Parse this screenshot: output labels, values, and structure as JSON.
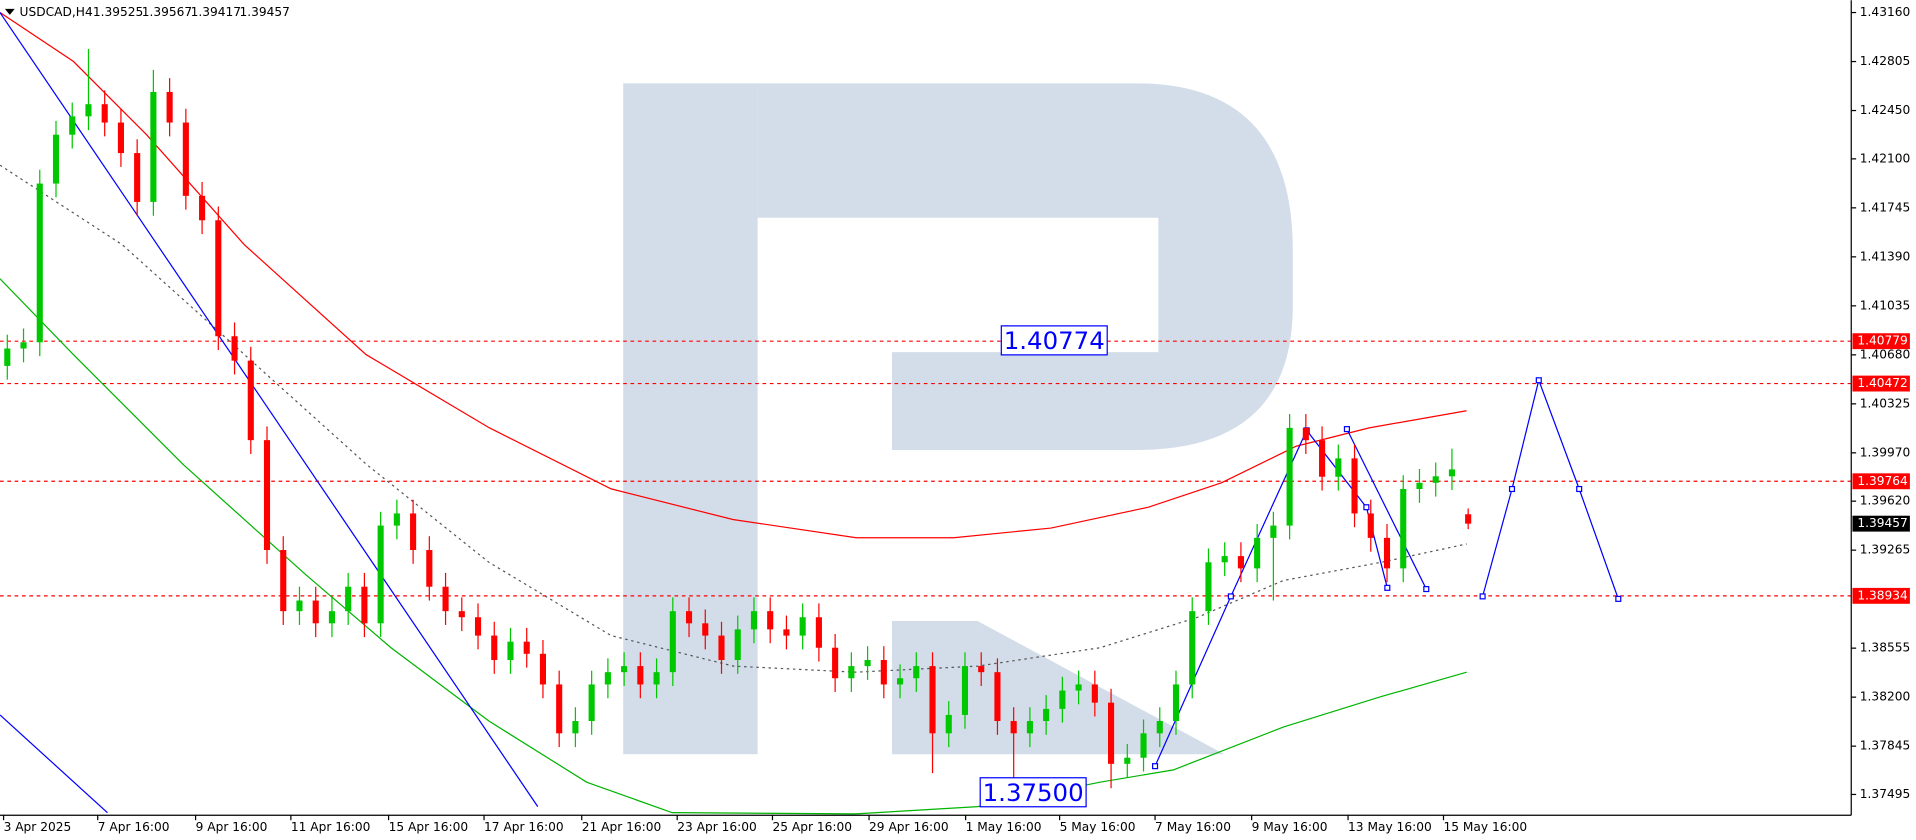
{
  "chart_data": {
    "type": "candlestick",
    "title": "USDCAD,H4",
    "bull_color": "#00c800",
    "bear_color": "#ff0000",
    "xlim": [
      -0.45,
      113.6
    ],
    "ylim": [
      1.37344,
      1.43249
    ],
    "yticks": [
      {
        "value": 1.4316,
        "label": "1.43160"
      },
      {
        "value": 1.42805,
        "label": "1.42805"
      },
      {
        "value": 1.4245,
        "label": "1.42450"
      },
      {
        "value": 1.421,
        "label": "1.42100"
      },
      {
        "value": 1.41745,
        "label": "1.41745"
      },
      {
        "value": 1.4139,
        "label": "1.41390"
      },
      {
        "value": 1.41035,
        "label": "1.41035"
      },
      {
        "value": 1.4068,
        "label": "1.40680"
      },
      {
        "value": 1.40325,
        "label": "1.40325"
      },
      {
        "value": 1.3997,
        "label": "1.39970"
      },
      {
        "value": 1.3962,
        "label": "1.39620"
      },
      {
        "value": 1.39265,
        "label": "1.39265"
      },
      {
        "value": 1.38555,
        "label": "1.38555"
      },
      {
        "value": 1.382,
        "label": "1.38200"
      },
      {
        "value": 1.37845,
        "label": "1.37845"
      },
      {
        "value": 1.37495,
        "label": "1.37495"
      }
    ],
    "xticks": [
      {
        "value": -0.23,
        "label": "3 Apr 2025"
      },
      {
        "value": 5.57,
        "label": "7 Apr 16:00"
      },
      {
        "value": 11.6,
        "label": "9 Apr 16:00"
      },
      {
        "value": 17.47,
        "label": "11 Apr 16:00"
      },
      {
        "value": 23.49,
        "label": "15 Apr 16:00"
      },
      {
        "value": 29.37,
        "label": "17 Apr 16:00"
      },
      {
        "value": 35.39,
        "label": "21 Apr 16:00"
      },
      {
        "value": 41.27,
        "label": "23 Apr 16:00"
      },
      {
        "value": 47.14,
        "label": "25 Apr 16:00"
      },
      {
        "value": 53.09,
        "label": "29 Apr 16:00"
      },
      {
        "value": 59.04,
        "label": "1 May 16:00"
      },
      {
        "value": 64.83,
        "label": "5 May 16:00"
      },
      {
        "value": 70.71,
        "label": "7 May 16:00"
      },
      {
        "value": 76.66,
        "label": "9 May 16:00"
      },
      {
        "value": 82.6,
        "label": "13 May 16:00"
      },
      {
        "value": 88.48,
        "label": "15 May 16:00"
      }
    ],
    "candles": [
      [
        1.406,
        1.40826,
        1.405,
        1.40726
      ],
      [
        1.40726,
        1.40871,
        1.40626,
        1.40771
      ],
      [
        1.40771,
        1.42021,
        1.40671,
        1.41921
      ],
      [
        1.41921,
        1.42375,
        1.41821,
        1.42275
      ],
      [
        1.42275,
        1.42508,
        1.42175,
        1.42408
      ],
      [
        1.42408,
        1.42896,
        1.42308,
        1.42496
      ],
      [
        1.42496,
        1.42596,
        1.42263,
        1.42363
      ],
      [
        1.42363,
        1.42463,
        1.42042,
        1.42142
      ],
      [
        1.42142,
        1.42242,
        1.41688,
        1.41788
      ],
      [
        1.41788,
        1.42745,
        1.41688,
        1.42585
      ],
      [
        1.42585,
        1.42685,
        1.42263,
        1.42363
      ],
      [
        1.42363,
        1.42463,
        1.41732,
        1.41832
      ],
      [
        1.41832,
        1.41932,
        1.41555,
        1.41655
      ],
      [
        1.41655,
        1.41755,
        1.40715,
        1.40815
      ],
      [
        1.40815,
        1.40915,
        1.40538,
        1.40638
      ],
      [
        1.40638,
        1.40738,
        1.39962,
        1.40062
      ],
      [
        1.40062,
        1.40162,
        1.39166,
        1.39266
      ],
      [
        1.39266,
        1.39366,
        1.38723,
        1.38823
      ],
      [
        1.38823,
        1.39,
        1.38723,
        1.389
      ],
      [
        1.389,
        1.39,
        1.38635,
        1.38735
      ],
      [
        1.38735,
        1.38923,
        1.38635,
        1.38823
      ],
      [
        1.38823,
        1.391,
        1.38723,
        1.39
      ],
      [
        1.39,
        1.391,
        1.38635,
        1.38735
      ],
      [
        1.38735,
        1.39543,
        1.38635,
        1.39443
      ],
      [
        1.39443,
        1.39631,
        1.39343,
        1.39531
      ],
      [
        1.39531,
        1.39631,
        1.39166,
        1.39266
      ],
      [
        1.39266,
        1.39366,
        1.389,
        1.39
      ],
      [
        1.39,
        1.391,
        1.38723,
        1.38823
      ],
      [
        1.38823,
        1.38923,
        1.38679,
        1.38779
      ],
      [
        1.38779,
        1.38879,
        1.38546,
        1.38646
      ],
      [
        1.38646,
        1.38746,
        1.38369,
        1.38469
      ],
      [
        1.38469,
        1.38702,
        1.38369,
        1.38602
      ],
      [
        1.38602,
        1.38702,
        1.38414,
        1.38514
      ],
      [
        1.38514,
        1.38614,
        1.38192,
        1.38292
      ],
      [
        1.38292,
        1.38392,
        1.37838,
        1.37938
      ],
      [
        1.37938,
        1.38127,
        1.37838,
        1.38027
      ],
      [
        1.38027,
        1.38392,
        1.37927,
        1.38292
      ],
      [
        1.38292,
        1.38481,
        1.38192,
        1.38381
      ],
      [
        1.38381,
        1.38525,
        1.38281,
        1.38425
      ],
      [
        1.38425,
        1.38525,
        1.38192,
        1.38292
      ],
      [
        1.38292,
        1.38481,
        1.38192,
        1.38381
      ],
      [
        1.38381,
        1.38923,
        1.38281,
        1.38823
      ],
      [
        1.38823,
        1.38923,
        1.38635,
        1.38735
      ],
      [
        1.38735,
        1.38835,
        1.38546,
        1.38646
      ],
      [
        1.38646,
        1.38746,
        1.38369,
        1.38469
      ],
      [
        1.38469,
        1.38791,
        1.38369,
        1.38691
      ],
      [
        1.38691,
        1.38923,
        1.38591,
        1.38823
      ],
      [
        1.38823,
        1.38923,
        1.38591,
        1.38691
      ],
      [
        1.38691,
        1.38791,
        1.38546,
        1.38646
      ],
      [
        1.38646,
        1.38879,
        1.38546,
        1.38779
      ],
      [
        1.38779,
        1.38879,
        1.38458,
        1.38558
      ],
      [
        1.38558,
        1.38658,
        1.38237,
        1.38337
      ],
      [
        1.38337,
        1.38525,
        1.38237,
        1.38425
      ],
      [
        1.38425,
        1.38569,
        1.38325,
        1.38469
      ],
      [
        1.38469,
        1.38569,
        1.38192,
        1.38292
      ],
      [
        1.38292,
        1.38437,
        1.38192,
        1.38337
      ],
      [
        1.38337,
        1.38525,
        1.38237,
        1.38425
      ],
      [
        1.38425,
        1.38525,
        1.3765,
        1.37938
      ],
      [
        1.37938,
        1.38171,
        1.37838,
        1.38071
      ],
      [
        1.38071,
        1.38525,
        1.37971,
        1.38425
      ],
      [
        1.38425,
        1.38525,
        1.38281,
        1.38381
      ],
      [
        1.38381,
        1.38481,
        1.37927,
        1.38027
      ],
      [
        1.38027,
        1.38127,
        1.375,
        1.37938
      ],
      [
        1.37938,
        1.38127,
        1.37838,
        1.38027
      ],
      [
        1.38027,
        1.38215,
        1.37927,
        1.38115
      ],
      [
        1.38115,
        1.38348,
        1.38015,
        1.38248
      ],
      [
        1.38248,
        1.38392,
        1.38148,
        1.38292
      ],
      [
        1.38292,
        1.38392,
        1.3806,
        1.3816
      ],
      [
        1.3816,
        1.3826,
        1.3754,
        1.37717
      ],
      [
        1.37717,
        1.37861,
        1.37617,
        1.37761
      ],
      [
        1.37761,
        1.38038,
        1.37661,
        1.37938
      ],
      [
        1.37938,
        1.38127,
        1.37838,
        1.38027
      ],
      [
        1.38027,
        1.38392,
        1.37927,
        1.38292
      ],
      [
        1.38292,
        1.38923,
        1.38192,
        1.38823
      ],
      [
        1.38823,
        1.39277,
        1.38723,
        1.39177
      ],
      [
        1.39177,
        1.39322,
        1.39077,
        1.39222
      ],
      [
        1.39222,
        1.39322,
        1.39033,
        1.39133
      ],
      [
        1.39133,
        1.39454,
        1.39033,
        1.39354
      ],
      [
        1.39354,
        1.39543,
        1.389,
        1.39443
      ],
      [
        1.39443,
        1.40251,
        1.39343,
        1.40151
      ],
      [
        1.40151,
        1.40251,
        1.39962,
        1.40062
      ],
      [
        1.40062,
        1.40162,
        1.39697,
        1.39797
      ],
      [
        1.39797,
        1.4003,
        1.39697,
        1.3993
      ],
      [
        1.3993,
        1.4003,
        1.39431,
        1.39531
      ],
      [
        1.39531,
        1.39631,
        1.39254,
        1.39354
      ],
      [
        1.39354,
        1.39454,
        1.39033,
        1.39133
      ],
      [
        1.39133,
        1.39808,
        1.39033,
        1.39708
      ],
      [
        1.39708,
        1.39853,
        1.39608,
        1.39753
      ],
      [
        1.39753,
        1.399,
        1.39653,
        1.398
      ],
      [
        1.398,
        1.4,
        1.397,
        1.3985
      ],
      [
        1.39525,
        1.39567,
        1.39417,
        1.39457
      ]
    ],
    "lines": [
      {
        "color": "#ff0000",
        "style": "solid",
        "x": [
          -0.45,
          4.07,
          8.58,
          14.6,
          22.1,
          29.7,
          37.2,
          44.7,
          52.3,
          58.3,
          64.3,
          70.3,
          74.8,
          79.4,
          83.9,
          89.9
        ],
        "values": [
          1.4316,
          1.42806,
          1.42275,
          1.41478,
          1.40682,
          1.40151,
          1.39709,
          1.39487,
          1.39355,
          1.39355,
          1.39425,
          1.39576,
          1.39753,
          1.40018,
          1.40151,
          1.40275
        ]
      },
      {
        "color": "#00b400",
        "style": "solid",
        "x": [
          -0.45,
          4.07,
          10.84,
          18.37,
          23.64,
          29.67,
          35.69,
          40.96,
          52.26,
          59.79,
          67.32,
          71.84,
          78.61,
          84.64,
          89.91
        ],
        "values": [
          1.41231,
          1.40682,
          1.39885,
          1.39089,
          1.38558,
          1.38027,
          1.37584,
          1.37363,
          1.37354,
          1.37407,
          1.37584,
          1.37673,
          1.37983,
          1.38204,
          1.38381
        ]
      },
      {
        "color": "#555555",
        "style": "dotted",
        "x": [
          -0.45,
          7.08,
          14.61,
          22.14,
          29.67,
          37.2,
          44.73,
          52.26,
          59.79,
          67.32,
          73.34,
          78.61,
          84.64,
          89.91
        ],
        "values": [
          1.42054,
          1.41478,
          1.40682,
          1.39885,
          1.39177,
          1.38646,
          1.38425,
          1.38381,
          1.38425,
          1.38558,
          1.38779,
          1.39045,
          1.39177,
          1.3931
        ]
      },
      {
        "color": "#0000ff",
        "style": "solid",
        "x": [
          -0.45,
          32.68
        ],
        "values": [
          1.4316,
          1.37407
        ]
      },
      {
        "color": "#0000ff",
        "style": "solid",
        "x": [
          -0.45,
          6.17
        ],
        "values": [
          1.38071,
          1.37363
        ]
      },
      {
        "color": "#0000ff",
        "style": "solid",
        "markers": true,
        "x": [
          70.71,
          75.38,
          80.05,
          83.73,
          85.02
        ],
        "values": [
          1.377,
          1.3893,
          1.40133,
          1.39576,
          1.38992
        ]
      },
      {
        "color": "#0000ff",
        "style": "solid",
        "markers": true,
        "x": [
          82.53,
          87.42
        ],
        "values": [
          1.40142,
          1.38983
        ]
      },
      {
        "color": "#0000ff",
        "style": "solid",
        "markers": true,
        "x": [
          90.89,
          92.7,
          94.35,
          96.84,
          99.25
        ],
        "values": [
          1.3893,
          1.39708,
          1.40496,
          1.39708,
          1.38912
        ]
      }
    ],
    "levels": {
      "color": "#ff0000",
      "values": [
        1.40779,
        1.40472,
        1.39764,
        1.38934
      ]
    },
    "last_price_color": "#000000",
    "annotation_color": "#0000ff",
    "annotations": [
      {
        "value": 1.40774,
        "x": 64.5
      },
      {
        "value": 1.375,
        "label": "1.37500",
        "x": 63.2
      }
    ]
  }
}
